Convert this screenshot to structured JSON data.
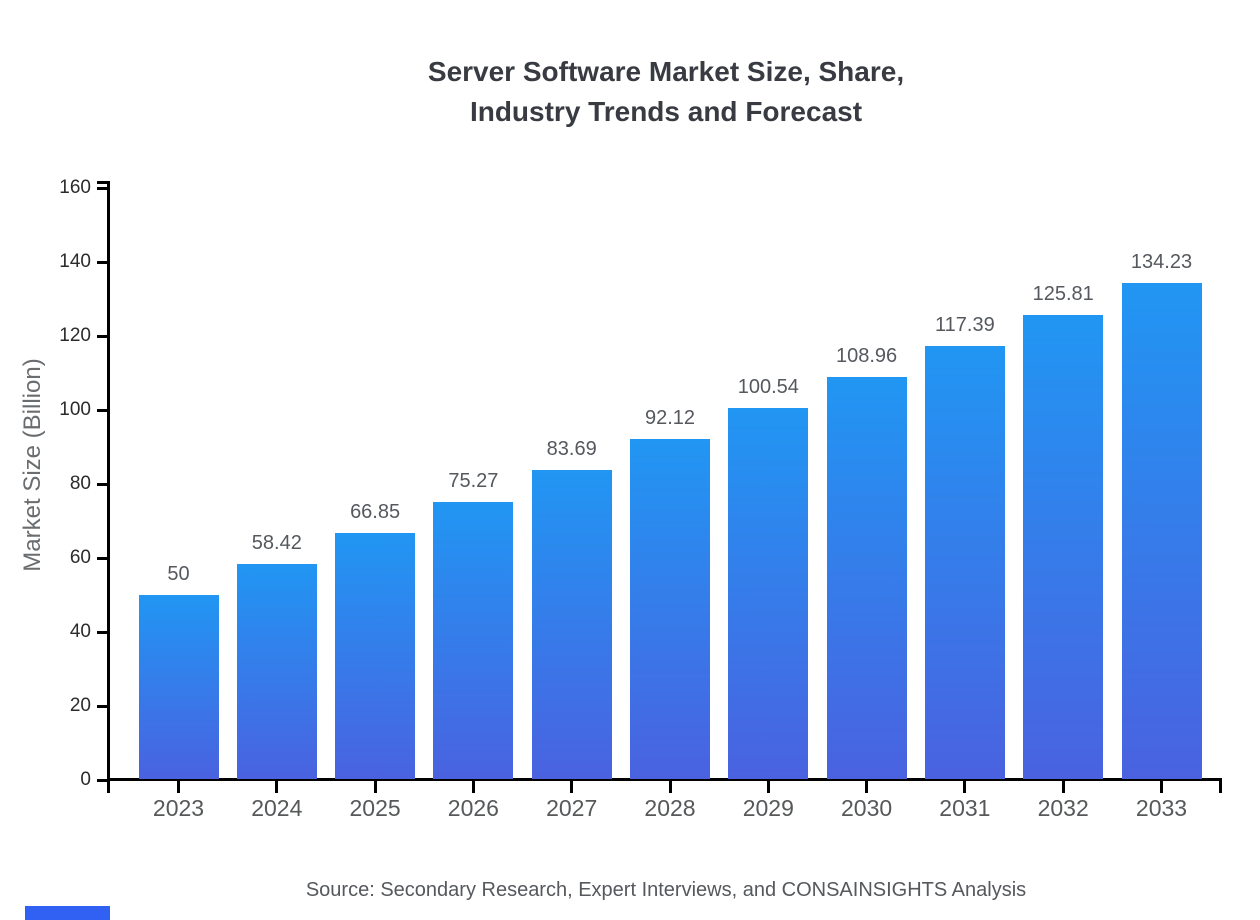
{
  "chart_data": {
    "type": "bar",
    "title_line1": "Server Software Market Size, Share,",
    "title_line2": "Industry Trends and Forecast",
    "categories": [
      "2023",
      "2024",
      "2025",
      "2026",
      "2027",
      "2028",
      "2029",
      "2030",
      "2031",
      "2032",
      "2033"
    ],
    "values": [
      50,
      58.42,
      66.85,
      75.27,
      83.69,
      92.12,
      100.54,
      108.96,
      117.39,
      125.81,
      134.23
    ],
    "value_labels": [
      "50",
      "58.42",
      "66.85",
      "75.27",
      "83.69",
      "92.12",
      "100.54",
      "108.96",
      "117.39",
      "125.81",
      "134.23"
    ],
    "xlabel": "",
    "ylabel": "Market Size (Billion)",
    "ylim": [
      0,
      160
    ],
    "y_ticks": [
      0,
      20,
      40,
      60,
      80,
      100,
      120,
      140,
      160
    ],
    "grid": false,
    "legend": false,
    "bar_color_top": "#2196f3",
    "bar_color_bottom": "#4a62e0",
    "axis_color": "#000000"
  },
  "source_note": "Source: Secondary Research, Expert Interviews, and CONSAINSIGHTS Analysis",
  "brand_color": "#3061f2"
}
